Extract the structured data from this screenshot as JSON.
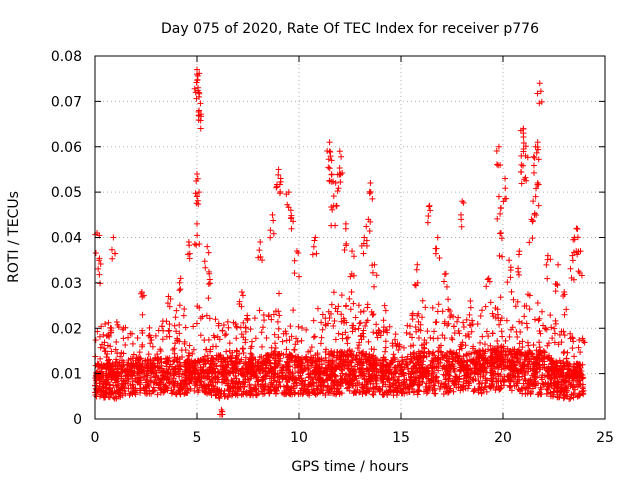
{
  "chart_data": {
    "type": "scatter",
    "title": "Day 075 of 2020, Rate Of TEC Index for receiver p776",
    "xlabel": "GPS time / hours",
    "ylabel": "ROTI / TECUs",
    "xlim": [
      0,
      25
    ],
    "ylim": [
      0,
      0.08
    ],
    "xticks": [
      "0",
      "5",
      "10",
      "15",
      "20",
      "25"
    ],
    "yticks": [
      "0",
      "0.01",
      "0.02",
      "0.03",
      "0.04",
      "0.05",
      "0.06",
      "0.07",
      "0.08"
    ],
    "grid": true,
    "marker": "+",
    "colors": {
      "series": "#ff0000",
      "grid": "#b0b0b0",
      "axes": "#000000"
    },
    "notable_points": [
      {
        "x": 0.1,
        "y": 0.041
      },
      {
        "x": 0.2,
        "y": 0.035
      },
      {
        "x": 0.9,
        "y": 0.04
      },
      {
        "x": 2.3,
        "y": 0.028
      },
      {
        "x": 3.6,
        "y": 0.027
      },
      {
        "x": 4.2,
        "y": 0.031
      },
      {
        "x": 4.6,
        "y": 0.039
      },
      {
        "x": 5.0,
        "y": 0.077
      },
      {
        "x": 5.0,
        "y": 0.076
      },
      {
        "x": 5.05,
        "y": 0.073
      },
      {
        "x": 5.1,
        "y": 0.071
      },
      {
        "x": 5.1,
        "y": 0.068
      },
      {
        "x": 5.0,
        "y": 0.054
      },
      {
        "x": 5.1,
        "y": 0.05
      },
      {
        "x": 5.0,
        "y": 0.043
      },
      {
        "x": 5.5,
        "y": 0.038
      },
      {
        "x": 5.6,
        "y": 0.032
      },
      {
        "x": 6.2,
        "y": 0.002
      },
      {
        "x": 7.2,
        "y": 0.028
      },
      {
        "x": 8.1,
        "y": 0.039
      },
      {
        "x": 8.7,
        "y": 0.045
      },
      {
        "x": 9.0,
        "y": 0.055
      },
      {
        "x": 9.1,
        "y": 0.053
      },
      {
        "x": 9.5,
        "y": 0.05
      },
      {
        "x": 9.6,
        "y": 0.046
      },
      {
        "x": 9.9,
        "y": 0.037
      },
      {
        "x": 10.8,
        "y": 0.04
      },
      {
        "x": 11.5,
        "y": 0.061
      },
      {
        "x": 11.5,
        "y": 0.059
      },
      {
        "x": 11.6,
        "y": 0.057
      },
      {
        "x": 11.8,
        "y": 0.052
      },
      {
        "x": 12.0,
        "y": 0.059
      },
      {
        "x": 12.0,
        "y": 0.054
      },
      {
        "x": 11.7,
        "y": 0.047
      },
      {
        "x": 12.3,
        "y": 0.043
      },
      {
        "x": 12.6,
        "y": 0.037
      },
      {
        "x": 13.2,
        "y": 0.04
      },
      {
        "x": 13.5,
        "y": 0.052
      },
      {
        "x": 13.4,
        "y": 0.044
      },
      {
        "x": 13.7,
        "y": 0.034
      },
      {
        "x": 14.2,
        "y": 0.025
      },
      {
        "x": 15.8,
        "y": 0.034
      },
      {
        "x": 16.4,
        "y": 0.047
      },
      {
        "x": 16.8,
        "y": 0.04
      },
      {
        "x": 17.2,
        "y": 0.032
      },
      {
        "x": 18.0,
        "y": 0.048
      },
      {
        "x": 18.4,
        "y": 0.026
      },
      {
        "x": 19.3,
        "y": 0.031
      },
      {
        "x": 19.8,
        "y": 0.06
      },
      {
        "x": 19.8,
        "y": 0.049
      },
      {
        "x": 19.9,
        "y": 0.041
      },
      {
        "x": 20.1,
        "y": 0.053
      },
      {
        "x": 20.3,
        "y": 0.035
      },
      {
        "x": 20.8,
        "y": 0.037
      },
      {
        "x": 20.9,
        "y": 0.056
      },
      {
        "x": 21.0,
        "y": 0.064
      },
      {
        "x": 21.0,
        "y": 0.063
      },
      {
        "x": 21.1,
        "y": 0.058
      },
      {
        "x": 21.4,
        "y": 0.044
      },
      {
        "x": 21.6,
        "y": 0.06
      },
      {
        "x": 21.7,
        "y": 0.061
      },
      {
        "x": 21.8,
        "y": 0.074
      },
      {
        "x": 21.7,
        "y": 0.052
      },
      {
        "x": 21.6,
        "y": 0.049
      },
      {
        "x": 22.2,
        "y": 0.036
      },
      {
        "x": 22.7,
        "y": 0.034
      },
      {
        "x": 23.0,
        "y": 0.028
      },
      {
        "x": 23.4,
        "y": 0.036
      },
      {
        "x": 23.6,
        "y": 0.042
      },
      {
        "x": 23.5,
        "y": 0.04
      },
      {
        "x": 23.8,
        "y": 0.037
      }
    ],
    "baseline_profile": [
      {
        "x": 0,
        "low": 0.004,
        "mid": 0.009,
        "high": 0.02
      },
      {
        "x": 1,
        "low": 0.003,
        "mid": 0.009,
        "high": 0.022
      },
      {
        "x": 2,
        "low": 0.004,
        "mid": 0.01,
        "high": 0.019
      },
      {
        "x": 3,
        "low": 0.004,
        "mid": 0.01,
        "high": 0.021
      },
      {
        "x": 4,
        "low": 0.004,
        "mid": 0.01,
        "high": 0.024
      },
      {
        "x": 5,
        "low": 0.005,
        "mid": 0.01,
        "high": 0.026
      },
      {
        "x": 6,
        "low": 0.003,
        "mid": 0.01,
        "high": 0.022
      },
      {
        "x": 7,
        "low": 0.004,
        "mid": 0.01,
        "high": 0.022
      },
      {
        "x": 8,
        "low": 0.004,
        "mid": 0.01,
        "high": 0.024
      },
      {
        "x": 9,
        "low": 0.004,
        "mid": 0.011,
        "high": 0.029
      },
      {
        "x": 10,
        "low": 0.004,
        "mid": 0.01,
        "high": 0.022
      },
      {
        "x": 11,
        "low": 0.004,
        "mid": 0.01,
        "high": 0.025
      },
      {
        "x": 12,
        "low": 0.004,
        "mid": 0.011,
        "high": 0.03
      },
      {
        "x": 13,
        "low": 0.004,
        "mid": 0.011,
        "high": 0.028
      },
      {
        "x": 14,
        "low": 0.004,
        "mid": 0.01,
        "high": 0.022
      },
      {
        "x": 15,
        "low": 0.004,
        "mid": 0.01,
        "high": 0.02
      },
      {
        "x": 16,
        "low": 0.004,
        "mid": 0.011,
        "high": 0.027
      },
      {
        "x": 17,
        "low": 0.004,
        "mid": 0.011,
        "high": 0.025
      },
      {
        "x": 18,
        "low": 0.005,
        "mid": 0.011,
        "high": 0.023
      },
      {
        "x": 19,
        "low": 0.004,
        "mid": 0.011,
        "high": 0.025
      },
      {
        "x": 20,
        "low": 0.005,
        "mid": 0.012,
        "high": 0.028
      },
      {
        "x": 21,
        "low": 0.004,
        "mid": 0.011,
        "high": 0.029
      },
      {
        "x": 22,
        "low": 0.004,
        "mid": 0.011,
        "high": 0.025
      },
      {
        "x": 23,
        "low": 0.003,
        "mid": 0.009,
        "high": 0.02
      },
      {
        "x": 24,
        "low": 0.004,
        "mid": 0.009,
        "high": 0.018
      }
    ]
  }
}
